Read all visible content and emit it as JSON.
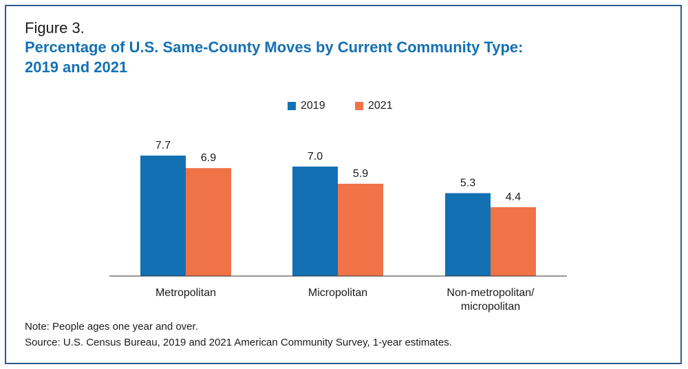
{
  "figure": {
    "label": "Figure 3.",
    "title": "Percentage of U.S. Same-County Moves by Current Community Type: 2019 and 2021",
    "title_lines": [
      "Percentage of U.S. Same-County Moves by Current Community Type:",
      "2019 and 2021"
    ],
    "note": "Note: People ages one year and over.",
    "source": "Source: U.S. Census Bureau, 2019 and 2021 American Community Survey, 1-year estimates."
  },
  "colors": {
    "border": "#2c5a8c",
    "title": "#1370b3",
    "series_2019": "#1370b3",
    "series_2021": "#f07247",
    "axis": "#333333"
  },
  "chart_data": {
    "type": "bar",
    "categories": [
      [
        "Metropolitan"
      ],
      [
        "Micropolitan"
      ],
      [
        "Non-metropolitan/",
        "micropolitan"
      ]
    ],
    "series": [
      {
        "name": "2019",
        "values": [
          7.7,
          7.0,
          5.3
        ],
        "labels": [
          "7.7",
          "7.0",
          "5.3"
        ],
        "color": "#1370b3"
      },
      {
        "name": "2021",
        "values": [
          6.9,
          5.9,
          4.4
        ],
        "labels": [
          "6.9",
          "5.9",
          "4.4"
        ],
        "color": "#f07247"
      }
    ],
    "title": "Percentage of U.S. Same-County Moves by Current Community Type: 2019 and 2021",
    "xlabel": "",
    "ylabel": "",
    "ylim": [
      0,
      7.7
    ],
    "grid": false,
    "legend_position": "top-center",
    "data_labels": true
  }
}
